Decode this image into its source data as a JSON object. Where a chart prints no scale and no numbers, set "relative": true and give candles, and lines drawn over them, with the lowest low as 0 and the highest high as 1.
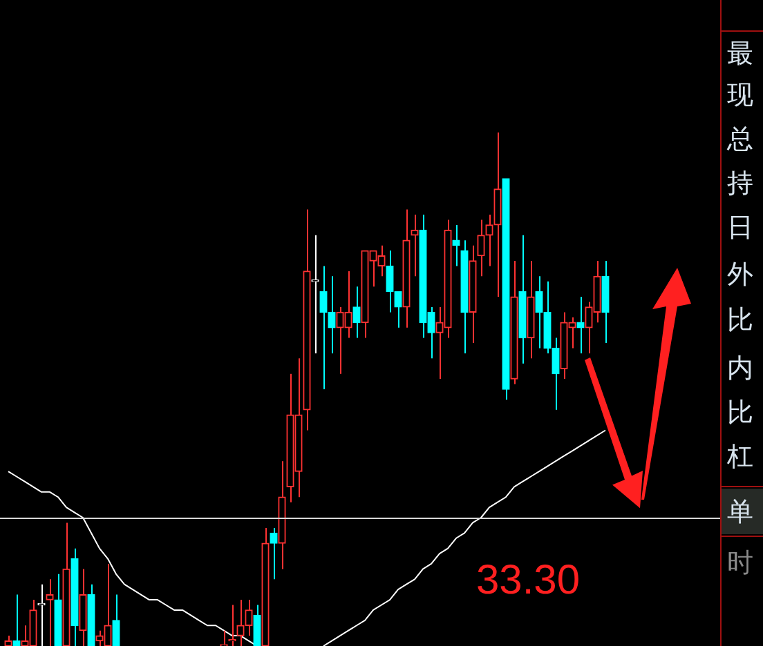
{
  "chart_data": {
    "type": "candlestick",
    "relative": true,
    "grid": false,
    "legend": false,
    "categories": [
      null,
      null,
      null,
      null,
      null,
      null,
      null,
      null,
      null,
      null,
      null,
      null,
      null,
      null,
      null,
      null,
      null,
      null,
      null,
      null,
      null,
      null,
      null,
      null,
      null,
      null,
      null,
      null,
      null,
      null,
      null,
      null,
      null,
      null,
      null,
      null,
      null,
      null,
      null,
      null,
      null,
      null,
      null,
      null,
      null,
      null,
      null,
      null,
      null,
      null,
      null,
      null,
      null,
      null,
      null,
      null,
      null,
      null,
      null,
      null,
      null,
      null,
      null,
      null,
      null,
      null,
      null,
      null,
      null,
      null,
      null,
      null,
      null
    ],
    "ohlc": [
      [
        0,
        0.02,
        0,
        0.01
      ],
      [
        0.01,
        0.1,
        0,
        0
      ],
      [
        0,
        0.04,
        0,
        0.01
      ],
      [
        0,
        0.09,
        0,
        0.07
      ],
      [
        0.08,
        0.12,
        0,
        0.08
      ],
      [
        0.09,
        0.13,
        0,
        0.1
      ],
      [
        0.09,
        0.14,
        0,
        0
      ],
      [
        0,
        0.24,
        0,
        0.15
      ],
      [
        0.17,
        0.19,
        0,
        0.04
      ],
      [
        0.03,
        0.15,
        0,
        0.1
      ],
      [
        0.1,
        0.12,
        0,
        0
      ],
      [
        0.01,
        0.03,
        0,
        0.02
      ],
      [
        0,
        0.16,
        0,
        0.04
      ],
      [
        0.05,
        0.1,
        0,
        0
      ],
      null,
      null,
      null,
      null,
      null,
      null,
      null,
      null,
      null,
      null,
      null,
      null,
      [
        0,
        0.03,
        0,
        0
      ],
      [
        0.01,
        0.08,
        0,
        0.01
      ],
      [
        0.02,
        0.09,
        0,
        0.04
      ],
      [
        0.04,
        0.09,
        0.02,
        0.07
      ],
      [
        0.06,
        0.08,
        0,
        0
      ],
      [
        0,
        0.23,
        0,
        0.2
      ],
      [
        0.22,
        0.23,
        0.13,
        0.2
      ],
      [
        0.2,
        0.36,
        0.15,
        0.29
      ],
      [
        0.31,
        0.53,
        0.28,
        0.45
      ],
      [
        0.34,
        0.56,
        0.29,
        0.45
      ],
      [
        0.46,
        0.85,
        0.42,
        0.73
      ],
      [
        0.71,
        0.8,
        0.57,
        0.71
      ],
      [
        0.69,
        0.74,
        0.5,
        0.65
      ],
      [
        0.65,
        0.72,
        0.57,
        0.62
      ],
      [
        0.62,
        0.66,
        0.53,
        0.65
      ],
      [
        0.62,
        0.73,
        0.6,
        0.65
      ],
      [
        0.66,
        0.7,
        0.6,
        0.63
      ],
      [
        0.63,
        0.77,
        0.6,
        0.77
      ],
      [
        0.75,
        0.77,
        0.7,
        0.77
      ],
      [
        0.74,
        0.78,
        0.72,
        0.76
      ],
      [
        0.74,
        0.77,
        0.65,
        0.69
      ],
      [
        0.69,
        0.69,
        0.62,
        0.66
      ],
      [
        0.66,
        0.85,
        0.62,
        0.79
      ],
      [
        0.8,
        0.84,
        0.72,
        0.81
      ],
      [
        0.81,
        0.84,
        0.6,
        0.63
      ],
      [
        0.65,
        0.66,
        0.56,
        0.61
      ],
      [
        0.61,
        0.66,
        0.52,
        0.63
      ],
      [
        0.62,
        0.83,
        0.6,
        0.81
      ],
      [
        0.79,
        0.82,
        0.74,
        0.78
      ],
      [
        0.77,
        0.79,
        0.57,
        0.65
      ],
      [
        0.65,
        0.78,
        0.59,
        0.75
      ],
      [
        0.76,
        0.83,
        0.72,
        0.8
      ],
      [
        0.8,
        0.84,
        0.74,
        0.82
      ],
      [
        0.82,
        1,
        0.68,
        0.89
      ],
      [
        0.91,
        0.91,
        0.48,
        0.5
      ],
      [
        0.52,
        0.75,
        0.51,
        0.68
      ],
      [
        0.69,
        0.8,
        0.55,
        0.6
      ],
      [
        0.6,
        0.75,
        0.56,
        0.68
      ],
      [
        0.69,
        0.72,
        0.58,
        0.65
      ],
      [
        0.65,
        0.71,
        0.57,
        0.58
      ],
      [
        0.58,
        0.6,
        0.46,
        0.53
      ],
      [
        0.54,
        0.65,
        0.52,
        0.63
      ],
      [
        0.62,
        0.64,
        0.58,
        0.63
      ],
      [
        0.63,
        0.68,
        0.57,
        0.62
      ],
      [
        0.62,
        0.67,
        0.57,
        0.66
      ],
      [
        0.65,
        0.75,
        0.63,
        0.72
      ],
      [
        0.72,
        0.75,
        0.59,
        0.65
      ]
    ],
    "colors": [
      "#ff3232",
      "#00ffff",
      "#ff3232",
      "#ff3232",
      "#ffffff",
      "#ff3232",
      "#00ffff",
      "#ff3232",
      "#00ffff",
      "#ff3232",
      "#00ffff",
      "#ff3232",
      "#ff3232",
      "#00ffff",
      null,
      null,
      null,
      null,
      null,
      null,
      null,
      null,
      null,
      null,
      null,
      null,
      "#ff3232",
      "#ff3232",
      "#ff3232",
      "#ff3232",
      "#00ffff",
      "#ff3232",
      "#00ffff",
      "#ff3232",
      "#ff3232",
      "#ff3232",
      "#ff3232",
      "#ffffff",
      "#00ffff",
      "#00ffff",
      "#ff3232",
      "#ff3232",
      "#00ffff",
      "#ff3232",
      "#ff3232",
      "#ff3232",
      "#00ffff",
      "#00ffff",
      "#ff3232",
      "#ff3232",
      "#00ffff",
      "#00ffff",
      "#ff3232",
      "#ff3232",
      "#00ffff",
      "#00ffff",
      "#ff3232",
      "#ff3232",
      "#ff3232",
      "#ff3232",
      "#00ffff",
      "#ff3232",
      "#00ffff",
      "#ff3232",
      "#00ffff",
      "#00ffff",
      "#00ffff",
      "#ff3232",
      "#ff3232",
      "#00ffff",
      "#ff3232",
      "#ff3232",
      "#00ffff"
    ],
    "series": [
      {
        "type": "line",
        "color": "#ffffff",
        "values": [
          0.34,
          0.33,
          0.32,
          0.31,
          0.3,
          0.3,
          0.29,
          0.27,
          0.26,
          0.25,
          0.22,
          0.19,
          0.17,
          0.14,
          0.12,
          0.11,
          0.1,
          0.09,
          0.09,
          0.08,
          0.07,
          0.07,
          0.06,
          0.05,
          0.04,
          0.04,
          0.03,
          0.02,
          0.02,
          0.01,
          0,
          null,
          null,
          null,
          null,
          null,
          null,
          null,
          0,
          0.01,
          0.02,
          0.03,
          0.04,
          0.05,
          0.07,
          0.08,
          0.09,
          0.11,
          0.12,
          0.13,
          0.15,
          0.16,
          0.18,
          0.19,
          0.21,
          0.22,
          0.24,
          0.25,
          0.27,
          0.28,
          0.29,
          0.31,
          0.32,
          0.33,
          0.34,
          0.35,
          0.36,
          0.37,
          0.38,
          0.39,
          0.4,
          0.41,
          0.42
        ]
      }
    ],
    "ref_lines": [
      {
        "axis": "y",
        "value": 0.25,
        "color": "#d8d8d8"
      }
    ],
    "annotations": [
      "33.30",
      "最",
      "现",
      "总",
      "持",
      "日",
      "外",
      "比",
      "内",
      "比",
      "杠",
      "单",
      "时"
    ]
  }
}
